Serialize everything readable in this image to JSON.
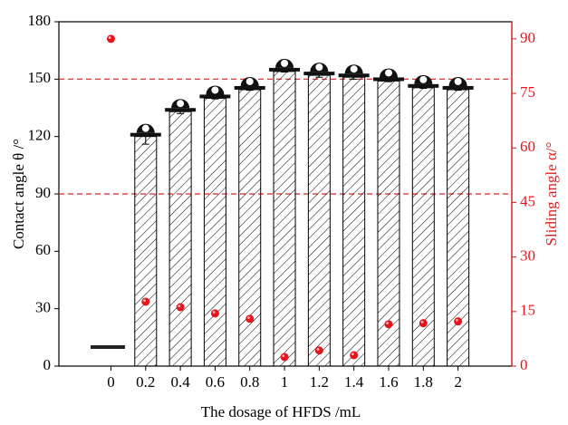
{
  "chart_data": {
    "type": "bar",
    "x_label": "The dosage of  HFDS /mL",
    "y_label": "Contact angle  θ /°",
    "y2_label": "Sliding angle α/°",
    "x": [
      0,
      0.2,
      0.4,
      0.6,
      0.8,
      1,
      1.2,
      1.4,
      1.6,
      1.8,
      2
    ],
    "xlim": [
      -0.3,
      2.31
    ],
    "xticks": [
      0,
      0.2,
      0.4,
      0.6,
      0.8,
      1,
      1.2,
      1.4,
      1.6,
      1.8,
      2
    ],
    "ylim": [
      0,
      180
    ],
    "yticks": [
      0,
      30,
      60,
      90,
      120,
      150,
      180
    ],
    "y2lim": [
      0,
      94.7
    ],
    "y2ticks": [
      0,
      15,
      30,
      45,
      60,
      75,
      90
    ],
    "reference_lines": [
      150,
      90
    ],
    "reference_color": "#e02020",
    "series": [
      {
        "type": "bar",
        "color": "#000000",
        "values": [
          null,
          120,
          133,
          140,
          144.5,
          154,
          152,
          151,
          149,
          145.5,
          144.5
        ],
        "errors": [
          null,
          4,
          1,
          0.3,
          0.3,
          0.3,
          1,
          1,
          0.3,
          0.3,
          0.3
        ]
      },
      {
        "type": "scatter",
        "axis": "y2",
        "color": "#e8141b",
        "values": [
          90,
          17.7,
          16.2,
          14.5,
          13,
          2.5,
          4.3,
          3,
          11.5,
          11.8,
          12.3
        ]
      }
    ]
  }
}
